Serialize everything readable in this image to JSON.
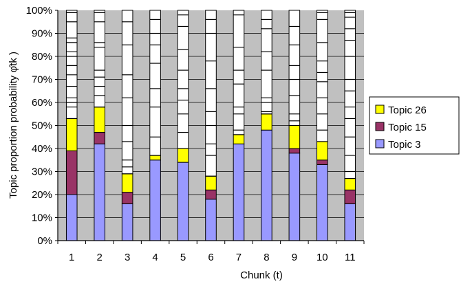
{
  "chart_data": {
    "type": "bar",
    "stacked": true,
    "xlabel": "Chunk (t)",
    "ylabel": "Topic proportion probability φ̂tk   )",
    "ylim": [
      0,
      100
    ],
    "y_ticks": [
      "0%",
      "10%",
      "20%",
      "30%",
      "40%",
      "50%",
      "60%",
      "70%",
      "80%",
      "90%",
      "100%"
    ],
    "categories": [
      "1",
      "2",
      "3",
      "4",
      "5",
      "6",
      "7",
      "8",
      "9",
      "10",
      "11"
    ],
    "series": [
      {
        "name": "Topic  3",
        "color": "#9999ff",
        "values": [
          20,
          42,
          16,
          35,
          34,
          18,
          42,
          48,
          38,
          33,
          16
        ]
      },
      {
        "name": "Topic  15",
        "color": "#993366",
        "values": [
          19,
          5,
          5,
          0,
          0,
          4,
          0,
          0,
          2,
          2,
          6
        ]
      },
      {
        "name": "Topic  26",
        "color": "#ffff00",
        "values": [
          14,
          11,
          8,
          2,
          6,
          6,
          4,
          7,
          10,
          8,
          5
        ]
      }
    ],
    "other_topics_color": "#ffffff",
    "other_topic_boundaries": [
      [
        53,
        58,
        60,
        62,
        67,
        72,
        76,
        80,
        82,
        86,
        88,
        95,
        99
      ],
      [
        58,
        63,
        67,
        71,
        74,
        84,
        86,
        95,
        99
      ],
      [
        29,
        32,
        35,
        43,
        50,
        62,
        72,
        85,
        95
      ],
      [
        37,
        45,
        58,
        66,
        77,
        85,
        90,
        96
      ],
      [
        40,
        47,
        55,
        61,
        66,
        74,
        83,
        93,
        98
      ],
      [
        28,
        37,
        42,
        50,
        56,
        66,
        78,
        90,
        96
      ],
      [
        46,
        48,
        55,
        58,
        68,
        74,
        84,
        98
      ],
      [
        55,
        56,
        60,
        62,
        74,
        82,
        92,
        96
      ],
      [
        50,
        52,
        55,
        63,
        70,
        76,
        85,
        93
      ],
      [
        43,
        48,
        55,
        62,
        69,
        73,
        78,
        86,
        96,
        99
      ],
      [
        27,
        30,
        37,
        45,
        53,
        58,
        65,
        70,
        80,
        87,
        92,
        97,
        99
      ]
    ],
    "grid": true,
    "plot_background": "#c0c0c0",
    "legend_position": "right",
    "legend_order": [
      "Topic  26",
      "Topic  15",
      "Topic  3"
    ]
  }
}
